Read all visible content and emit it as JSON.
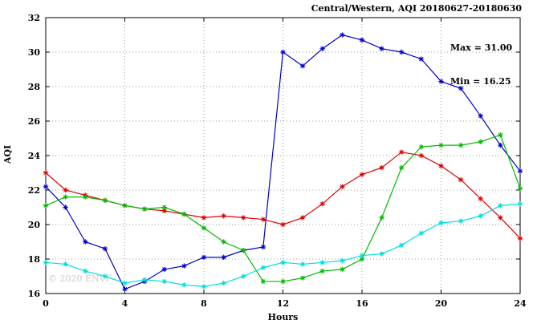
{
  "title": "Central/Western, AQI 20180627-20180630",
  "annotation": {
    "max": "Max = 31.00",
    "min": "Min = 16.25"
  },
  "watermark": "© 2020 ENVF",
  "chart_data": {
    "type": "line",
    "title": "Central/Western, AQI 20180627-20180630",
    "xlabel": "Hours",
    "ylabel": "AQI",
    "xlim": [
      0,
      24
    ],
    "ylim": [
      16,
      32
    ],
    "xticks": [
      0,
      4,
      8,
      12,
      16,
      20,
      24
    ],
    "yticks": [
      16,
      18,
      20,
      22,
      24,
      26,
      28,
      30,
      32
    ],
    "grid": true,
    "legend": "none",
    "x": [
      0,
      1,
      2,
      3,
      4,
      5,
      6,
      7,
      8,
      9,
      10,
      11,
      12,
      13,
      14,
      15,
      16,
      17,
      18,
      19,
      20,
      21,
      22,
      23,
      24
    ],
    "series": [
      {
        "name": "day-1-blue",
        "color": "#0000cc",
        "values": [
          22.2,
          21.0,
          19.0,
          18.6,
          16.25,
          16.7,
          17.4,
          17.6,
          18.1,
          18.1,
          18.5,
          18.7,
          30.0,
          29.2,
          30.2,
          31.0,
          30.7,
          30.2,
          30.0,
          29.6,
          28.3,
          27.9,
          26.3,
          24.6,
          23.1
        ]
      },
      {
        "name": "day-2-red",
        "color": "#dd0000",
        "values": [
          23.0,
          22.0,
          21.7,
          21.4,
          21.1,
          20.9,
          20.8,
          20.6,
          20.4,
          20.5,
          20.4,
          20.3,
          20.0,
          20.4,
          21.2,
          22.2,
          22.9,
          23.3,
          24.2,
          24.0,
          23.4,
          22.6,
          21.5,
          20.4,
          19.2
        ]
      },
      {
        "name": "day-3-green",
        "color": "#00bb00",
        "values": [
          21.1,
          21.6,
          21.6,
          21.4,
          21.1,
          20.9,
          21.0,
          20.6,
          19.8,
          19.0,
          18.5,
          16.7,
          16.7,
          16.9,
          17.3,
          17.4,
          18.0,
          20.4,
          23.3,
          24.5,
          24.6,
          24.6,
          24.8,
          25.2,
          22.1
        ]
      },
      {
        "name": "day-4-cyan",
        "color": "#00dede",
        "values": [
          17.8,
          17.7,
          17.3,
          17.0,
          16.6,
          16.8,
          16.7,
          16.5,
          16.4,
          16.6,
          17.0,
          17.5,
          17.8,
          17.7,
          17.8,
          17.9,
          18.2,
          18.3,
          18.8,
          19.5,
          20.1,
          20.2,
          20.5,
          21.1,
          21.2
        ]
      }
    ]
  }
}
